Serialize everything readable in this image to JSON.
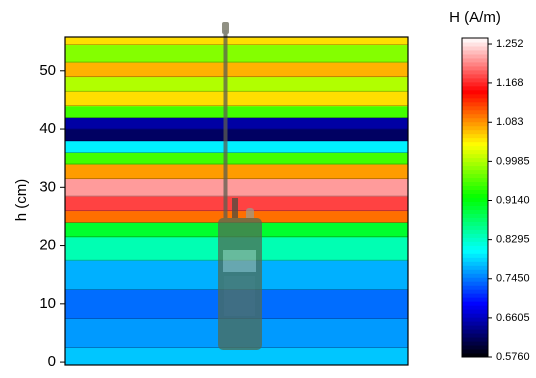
{
  "chart_data": {
    "type": "contour",
    "ylabel": "h (cm)",
    "colorbar_title": "H (A/m)",
    "y": [
      0,
      5,
      10,
      15,
      20,
      23,
      25,
      27,
      30,
      33,
      35,
      37,
      39,
      41,
      43,
      45,
      48,
      50,
      53,
      56
    ],
    "values": [
      0.78,
      0.76,
      0.74,
      0.77,
      0.84,
      0.9,
      1.1,
      1.18,
      1.22,
      1.08,
      0.95,
      0.8,
      0.62,
      0.65,
      0.95,
      1.05,
      1.0,
      1.07,
      0.98,
      1.05
    ],
    "ylim": [
      -0.5,
      55.8
    ],
    "yticks": [
      0,
      10,
      20,
      30,
      40,
      50
    ],
    "clim": [
      0.576,
      1.265
    ],
    "colorbar_ticks": [
      {
        "value": 0.576,
        "label": "0.5760"
      },
      0.6605,
      {
        "value": 0.745,
        "label": "0.7450"
      },
      0.8295,
      {
        "value": 0.914,
        "label": "0.9140"
      },
      0.9985,
      1.083,
      1.168,
      1.252
    ],
    "colormap": [
      "#000000",
      "#0000ff",
      "#00ffff",
      "#00ff00",
      "#ffff00",
      "#ff0000",
      "#ffffff"
    ]
  }
}
